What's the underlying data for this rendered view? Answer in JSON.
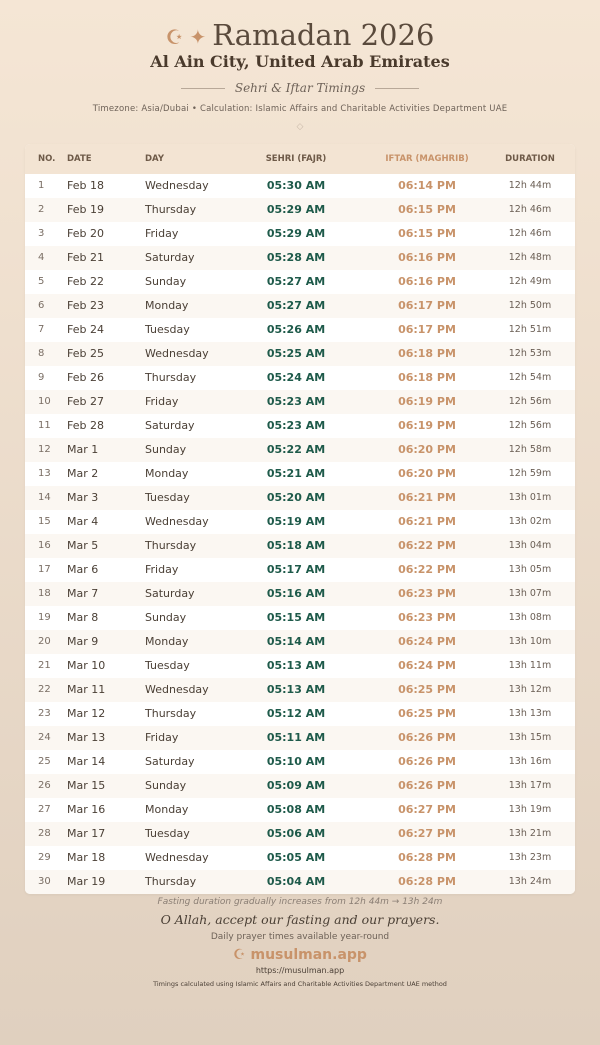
{
  "header": {
    "crescent_icon": "☪",
    "star_icon": "✦",
    "title": "Ramadan 2026",
    "city": "Al Ain City, United Arab Emirates",
    "subtitle": "Sehri & Iftar Timings",
    "info": "Timezone: Asia/Dubai • Calculation: Islamic Affairs and Charitable Activities Department UAE",
    "ornament": "◇"
  },
  "table": {
    "columns": [
      "NO.",
      "DATE",
      "DAY",
      "SEHRI (FAJR)",
      "IFTAR (MAGHRIB)",
      "DURATION"
    ],
    "rows": [
      [
        "1",
        "Feb 18",
        "Wednesday",
        "05:30 AM",
        "06:14 PM",
        "12h 44m"
      ],
      [
        "2",
        "Feb 19",
        "Thursday",
        "05:29 AM",
        "06:15 PM",
        "12h 46m"
      ],
      [
        "3",
        "Feb 20",
        "Friday",
        "05:29 AM",
        "06:15 PM",
        "12h 46m"
      ],
      [
        "4",
        "Feb 21",
        "Saturday",
        "05:28 AM",
        "06:16 PM",
        "12h 48m"
      ],
      [
        "5",
        "Feb 22",
        "Sunday",
        "05:27 AM",
        "06:16 PM",
        "12h 49m"
      ],
      [
        "6",
        "Feb 23",
        "Monday",
        "05:27 AM",
        "06:17 PM",
        "12h 50m"
      ],
      [
        "7",
        "Feb 24",
        "Tuesday",
        "05:26 AM",
        "06:17 PM",
        "12h 51m"
      ],
      [
        "8",
        "Feb 25",
        "Wednesday",
        "05:25 AM",
        "06:18 PM",
        "12h 53m"
      ],
      [
        "9",
        "Feb 26",
        "Thursday",
        "05:24 AM",
        "06:18 PM",
        "12h 54m"
      ],
      [
        "10",
        "Feb 27",
        "Friday",
        "05:23 AM",
        "06:19 PM",
        "12h 56m"
      ],
      [
        "11",
        "Feb 28",
        "Saturday",
        "05:23 AM",
        "06:19 PM",
        "12h 56m"
      ],
      [
        "12",
        "Mar 1",
        "Sunday",
        "05:22 AM",
        "06:20 PM",
        "12h 58m"
      ],
      [
        "13",
        "Mar 2",
        "Monday",
        "05:21 AM",
        "06:20 PM",
        "12h 59m"
      ],
      [
        "14",
        "Mar 3",
        "Tuesday",
        "05:20 AM",
        "06:21 PM",
        "13h 01m"
      ],
      [
        "15",
        "Mar 4",
        "Wednesday",
        "05:19 AM",
        "06:21 PM",
        "13h 02m"
      ],
      [
        "16",
        "Mar 5",
        "Thursday",
        "05:18 AM",
        "06:22 PM",
        "13h 04m"
      ],
      [
        "17",
        "Mar 6",
        "Friday",
        "05:17 AM",
        "06:22 PM",
        "13h 05m"
      ],
      [
        "18",
        "Mar 7",
        "Saturday",
        "05:16 AM",
        "06:23 PM",
        "13h 07m"
      ],
      [
        "19",
        "Mar 8",
        "Sunday",
        "05:15 AM",
        "06:23 PM",
        "13h 08m"
      ],
      [
        "20",
        "Mar 9",
        "Monday",
        "05:14 AM",
        "06:24 PM",
        "13h 10m"
      ],
      [
        "21",
        "Mar 10",
        "Tuesday",
        "05:13 AM",
        "06:24 PM",
        "13h 11m"
      ],
      [
        "22",
        "Mar 11",
        "Wednesday",
        "05:13 AM",
        "06:25 PM",
        "13h 12m"
      ],
      [
        "23",
        "Mar 12",
        "Thursday",
        "05:12 AM",
        "06:25 PM",
        "13h 13m"
      ],
      [
        "24",
        "Mar 13",
        "Friday",
        "05:11 AM",
        "06:26 PM",
        "13h 15m"
      ],
      [
        "25",
        "Mar 14",
        "Saturday",
        "05:10 AM",
        "06:26 PM",
        "13h 16m"
      ],
      [
        "26",
        "Mar 15",
        "Sunday",
        "05:09 AM",
        "06:26 PM",
        "13h 17m"
      ],
      [
        "27",
        "Mar 16",
        "Monday",
        "05:08 AM",
        "06:27 PM",
        "13h 19m"
      ],
      [
        "28",
        "Mar 17",
        "Tuesday",
        "05:06 AM",
        "06:27 PM",
        "13h 21m"
      ],
      [
        "29",
        "Mar 18",
        "Wednesday",
        "05:05 AM",
        "06:28 PM",
        "13h 23m"
      ],
      [
        "30",
        "Mar 19",
        "Thursday",
        "05:04 AM",
        "06:28 PM",
        "13h 24m"
      ]
    ]
  },
  "footer": {
    "note": "Fasting duration gradually increases from 12h 44m → 13h 24m",
    "dua": "O Allah, accept our fasting and our prayers.",
    "tagline": "Daily prayer times available year-round",
    "brand_icon": "☪",
    "brand": "musulman.app",
    "url": "https://musulman.app",
    "method": "Timings calculated using Islamic Affairs and Charitable Activities Department UAE method"
  },
  "colors": {
    "accent": "#c8936a",
    "sehri": "#1e5a4a"
  }
}
